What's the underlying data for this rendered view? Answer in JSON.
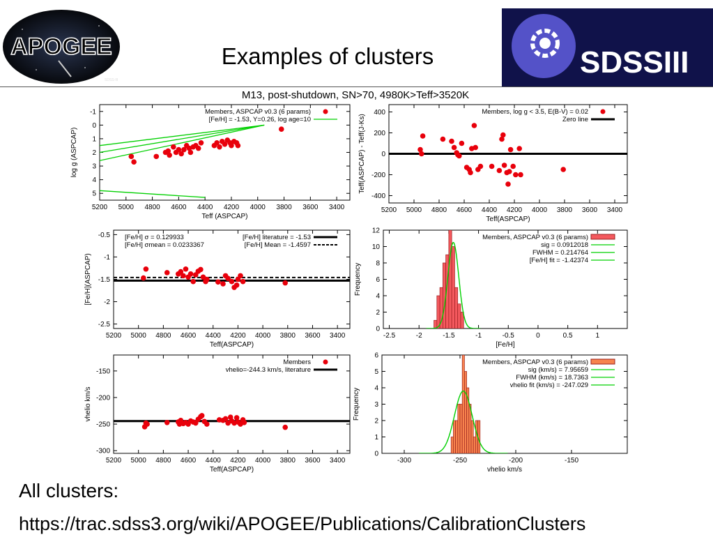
{
  "slide": {
    "title": "Examples of clusters",
    "logo_left_text": "APOGEE",
    "logo_right_text": "SDSSIII",
    "footer_line1": "All clusters:",
    "footer_line2": "https://trac.sdss3.org/wiki/APOGEE/Publications/CalibrationClusters"
  },
  "figure_title": "M13, post-shutdown, SN>70, 4980K>Teff>3520K",
  "colors": {
    "points": "#e8000b",
    "model": "#00d000",
    "hist_red": "#f4595e",
    "hist_orange": "#f7834d",
    "zero_line": "#000000"
  },
  "chart_data": [
    {
      "type": "scatter",
      "id": "p1",
      "xlabel": "Teff (ASPCAP)",
      "ylabel": "log g (ASPCAP)",
      "xlim": [
        5200,
        3300
      ],
      "ylim": [
        5.5,
        -1.5
      ],
      "xticks": [
        5200,
        5000,
        4800,
        4600,
        4400,
        4200,
        4000,
        3800,
        3600,
        3400
      ],
      "yticks": [
        -1,
        0,
        1,
        2,
        3,
        4,
        5
      ],
      "legend": [
        "Members, ASPCAP v0.3 (6 params)",
        "[Fe/H] = -1.53, Y=0.26, log age=10"
      ],
      "points": [
        [
          4960,
          2.3
        ],
        [
          4940,
          2.7
        ],
        [
          4770,
          2.3
        ],
        [
          4700,
          2.0
        ],
        [
          4680,
          1.9
        ],
        [
          4670,
          2.2
        ],
        [
          4640,
          1.6
        ],
        [
          4620,
          2.0
        ],
        [
          4600,
          1.8
        ],
        [
          4580,
          2.1
        ],
        [
          4560,
          1.8
        ],
        [
          4540,
          1.5
        ],
        [
          4520,
          1.7
        ],
        [
          4510,
          2.0
        ],
        [
          4490,
          1.6
        ],
        [
          4470,
          1.5
        ],
        [
          4450,
          1.7
        ],
        [
          4430,
          1.3
        ],
        [
          4330,
          1.5
        ],
        [
          4310,
          1.3
        ],
        [
          4290,
          1.6
        ],
        [
          4270,
          1.2
        ],
        [
          4250,
          1.4
        ],
        [
          4230,
          1.1
        ],
        [
          4210,
          1.3
        ],
        [
          4200,
          1.5
        ],
        [
          4180,
          1.2
        ],
        [
          4160,
          1.3
        ],
        [
          4150,
          1.5
        ],
        [
          3820,
          0.3
        ]
      ],
      "lines": [
        [
          [
            5200,
            1.5
          ],
          [
            3950,
            0.0
          ]
        ],
        [
          [
            5200,
            2.0
          ],
          [
            3950,
            0.0
          ]
        ],
        [
          [
            5200,
            2.6
          ],
          [
            3950,
            0.0
          ]
        ],
        [
          [
            5200,
            4.8
          ],
          [
            4400,
            5.3
          ]
        ]
      ]
    },
    {
      "type": "scatter",
      "id": "p2",
      "xlabel": "Teff(ASPCAP)",
      "ylabel": "Teff(ASPCAP) - Teff(J-Ks)",
      "xlim": [
        5200,
        3300
      ],
      "ylim": [
        -470,
        470
      ],
      "xticks": [
        5200,
        5000,
        4800,
        4600,
        4400,
        4200,
        4000,
        3800,
        3600,
        3400
      ],
      "yticks": [
        -400,
        -200,
        0,
        200,
        400
      ],
      "legend": [
        "Members, log g < 3.5, E(B-V) = 0.02",
        "Zero line"
      ],
      "points": [
        [
          4950,
          40
        ],
        [
          4940,
          0
        ],
        [
          4930,
          170
        ],
        [
          4770,
          140
        ],
        [
          4700,
          120
        ],
        [
          4680,
          60
        ],
        [
          4660,
          10
        ],
        [
          4650,
          -10
        ],
        [
          4640,
          -20
        ],
        [
          4620,
          100
        ],
        [
          4580,
          -130
        ],
        [
          4560,
          -150
        ],
        [
          4550,
          -180
        ],
        [
          4540,
          50
        ],
        [
          4520,
          270
        ],
        [
          4510,
          60
        ],
        [
          4490,
          -150
        ],
        [
          4470,
          -120
        ],
        [
          4380,
          -120
        ],
        [
          4320,
          -160
        ],
        [
          4300,
          140
        ],
        [
          4290,
          180
        ],
        [
          4280,
          -110
        ],
        [
          4260,
          -180
        ],
        [
          4250,
          -290
        ],
        [
          4240,
          -170
        ],
        [
          4230,
          40
        ],
        [
          4210,
          -120
        ],
        [
          4190,
          -200
        ],
        [
          4160,
          50
        ],
        [
          4150,
          -200
        ],
        [
          3810,
          -150
        ]
      ],
      "hline": 0
    },
    {
      "type": "scatter",
      "id": "p3",
      "xlabel": "Teff(ASPCAP)",
      "ylabel": "[Fe/H](ASPCAP)",
      "xlim": [
        5200,
        3300
      ],
      "ylim": [
        -2.6,
        -0.4
      ],
      "xticks": [
        5200,
        5000,
        4800,
        4600,
        4400,
        4200,
        4000,
        3800,
        3600,
        3400
      ],
      "yticks": [
        -0.5,
        -1,
        -1.5,
        -2,
        -2.5
      ],
      "legend": [
        "[Fe/H] σ = 0.129933",
        "[Fe/H] σmean = 0.0233367",
        "[Fe/H] literature = -1.53",
        "[Fe/H] Mean = -1.4597"
      ],
      "points": [
        [
          4960,
          -1.47
        ],
        [
          4940,
          -1.27
        ],
        [
          4770,
          -1.35
        ],
        [
          4680,
          -1.38
        ],
        [
          4660,
          -1.33
        ],
        [
          4640,
          -1.42
        ],
        [
          4620,
          -1.27
        ],
        [
          4600,
          -1.45
        ],
        [
          4580,
          -1.38
        ],
        [
          4560,
          -1.55
        ],
        [
          4540,
          -1.4
        ],
        [
          4520,
          -1.32
        ],
        [
          4500,
          -1.28
        ],
        [
          4480,
          -1.45
        ],
        [
          4460,
          -1.55
        ],
        [
          4450,
          -1.5
        ],
        [
          4360,
          -1.56
        ],
        [
          4320,
          -1.6
        ],
        [
          4300,
          -1.42
        ],
        [
          4280,
          -1.48
        ],
        [
          4250,
          -1.55
        ],
        [
          4230,
          -1.68
        ],
        [
          4210,
          -1.63
        ],
        [
          4200,
          -1.5
        ],
        [
          4180,
          -1.42
        ],
        [
          4160,
          -1.55
        ],
        [
          3820,
          -1.58
        ]
      ],
      "hlines": [
        -1.53,
        -1.4597
      ]
    },
    {
      "type": "bar",
      "id": "p4",
      "xlabel": "[Fe/H]",
      "ylabel": "Frequency",
      "xlim": [
        -2.6,
        1.5
      ],
      "ylim": [
        0,
        12
      ],
      "xticks": [
        -2.5,
        -2,
        -1.5,
        -1,
        -0.5,
        0,
        0.5,
        1
      ],
      "yticks": [
        0,
        2,
        4,
        6,
        8,
        10,
        12
      ],
      "legend": [
        "Members, ASPCAP v0.3 (6 params)",
        "sig = 0.0912018",
        "FWHM = 0.214764",
        "[Fe/H] fit = -1.42374"
      ],
      "bin_edges": [
        -1.75,
        -1.7,
        -1.65,
        -1.6,
        -1.55,
        -1.5,
        -1.45,
        -1.4,
        -1.35,
        -1.3,
        -1.25
      ],
      "values": [
        1,
        4,
        5,
        8,
        9,
        12,
        10,
        5,
        3,
        2
      ],
      "fit": {
        "mu": -1.42374,
        "sigma": 0.0912018,
        "peak": 10.5
      }
    },
    {
      "type": "scatter",
      "id": "p5",
      "xlabel": "Teff(ASPCAP)",
      "ylabel": "vhelio km/s",
      "xlim": [
        5200,
        3300
      ],
      "ylim": [
        -305,
        -120
      ],
      "xticks": [
        5200,
        5000,
        4800,
        4600,
        4400,
        4200,
        4000,
        3800,
        3600,
        3400
      ],
      "yticks": [
        -150,
        -200,
        -250,
        -300
      ],
      "legend": [
        "Members",
        "vhelio=-244.3 km/s, literature"
      ],
      "points": [
        [
          4950,
          -255
        ],
        [
          4940,
          -248
        ],
        [
          4930,
          -250
        ],
        [
          4770,
          -247
        ],
        [
          4680,
          -246
        ],
        [
          4670,
          -250
        ],
        [
          4660,
          -243
        ],
        [
          4640,
          -249
        ],
        [
          4620,
          -247
        ],
        [
          4600,
          -250
        ],
        [
          4580,
          -244
        ],
        [
          4560,
          -246
        ],
        [
          4540,
          -248
        ],
        [
          4520,
          -241
        ],
        [
          4500,
          -236
        ],
        [
          4490,
          -234
        ],
        [
          4470,
          -245
        ],
        [
          4450,
          -250
        ],
        [
          4350,
          -242
        ],
        [
          4320,
          -243
        ],
        [
          4300,
          -240
        ],
        [
          4280,
          -248
        ],
        [
          4260,
          -237
        ],
        [
          4250,
          -244
        ],
        [
          4230,
          -248
        ],
        [
          4210,
          -238
        ],
        [
          4200,
          -246
        ],
        [
          4180,
          -250
        ],
        [
          4160,
          -242
        ],
        [
          4150,
          -247
        ],
        [
          3820,
          -256
        ]
      ],
      "hline": -244.3
    },
    {
      "type": "bar",
      "id": "p6",
      "xlabel": "vhelio km/s",
      "ylabel": "Frequency",
      "xlim": [
        -320,
        -100
      ],
      "ylim": [
        0,
        6
      ],
      "xticks": [
        -300,
        -250,
        -200,
        -150
      ],
      "yticks": [
        0,
        1,
        2,
        3,
        4,
        5,
        6
      ],
      "legend": [
        "Members, ASPCAP v0.3 (6 params)",
        "sig (km/s) = 7.95659",
        "FWHM (km/s) = 18.7363",
        "vhelio fit (km/s) = -247.029"
      ],
      "bin_edges": [
        -258,
        -256,
        -254,
        -252,
        -250,
        -248,
        -246,
        -244,
        -242,
        -240,
        -238,
        -236,
        -234,
        -232
      ],
      "values": [
        1,
        2,
        2,
        3,
        3,
        6,
        5,
        4,
        3,
        2,
        1,
        2,
        2
      ],
      "fit": {
        "mu": -247.029,
        "sigma": 7.95659,
        "peak": 3.8
      }
    }
  ]
}
